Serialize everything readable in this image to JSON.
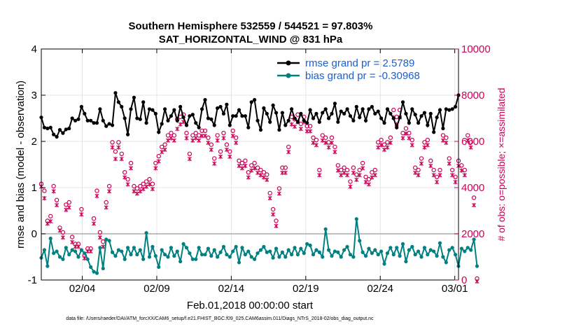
{
  "chart_data": {
    "type": "line",
    "title_line1": "Southern Hemisphere 532559 / 544521 = 97.803%",
    "title_line2": "SAT_HORIZONTAL_WIND @ 831 hPa",
    "xlabel": "Feb.01,2018 00:00:00 start",
    "ylabel_left": "rmse and bias (model - observation)",
    "ylabel_right": "# of obs: o=possible; ×=assimilated",
    "footnote": "data file: /Users/raeder/DAI/ATM_forcXX/CAM6_setup/f.e21.FHIST_BGC.f09_025.CAM6assim.011/Diags_NTrS_2018-02/obs_diag_output.nc",
    "xlim": [
      1,
      29
    ],
    "x_ticks": [
      3.75,
      8.75,
      13.75,
      18.75,
      23.75,
      28.75
    ],
    "x_tick_labels": [
      "02/04",
      "02/09",
      "02/14",
      "02/19",
      "02/24",
      "03/01"
    ],
    "ylim_left": [
      -1,
      4
    ],
    "y_ticks_left": [
      -1,
      0,
      1,
      2,
      3,
      4
    ],
    "ylim_right": [
      0,
      10000
    ],
    "y_ticks_right": [
      0,
      2000,
      4000,
      6000,
      8000,
      10000
    ],
    "series": [
      {
        "name": "rmse",
        "legend": "rmse grand pr = 2.5789",
        "color": "#000000",
        "axis": "left",
        "values": [
          2.52,
          2.3,
          2.28,
          2.3,
          2.15,
          2.1,
          2.25,
          2.18,
          2.26,
          2.28,
          2.5,
          2.45,
          2.48,
          2.75,
          2.6,
          2.45,
          2.45,
          2.4,
          2.4,
          2.7,
          2.45,
          2.33,
          2.38,
          2.35,
          3.05,
          2.85,
          2.75,
          2.5,
          2.15,
          2.7,
          2.95,
          2.5,
          2.48,
          2.85,
          2.4,
          2.7,
          2.68,
          2.6,
          2.2,
          2.38,
          2.7,
          2.45,
          2.55,
          2.68,
          2.45,
          2.75,
          2.52,
          2.35,
          2.55,
          2.58,
          2.4,
          2.3,
          2.7,
          2.9,
          2.5,
          2.48,
          2.35,
          2.72,
          2.75,
          2.6,
          2.8,
          2.35,
          2.55,
          2.55,
          2.68,
          2.55,
          2.55,
          2.3,
          2.85,
          2.9,
          2.45,
          2.25,
          2.72,
          2.6,
          2.42,
          2.78,
          2.62,
          2.25,
          2.62,
          2.35,
          2.45,
          2.7,
          2.5,
          2.42,
          2.6,
          2.45,
          2.4,
          2.68,
          2.5,
          2.6,
          2.42,
          2.62,
          2.7,
          2.5,
          2.6,
          2.82,
          2.42,
          2.65,
          2.6,
          2.7,
          2.55,
          2.45,
          2.75,
          2.52,
          2.7,
          2.45,
          2.7,
          2.75,
          2.6,
          2.65,
          2.5,
          2.4,
          2.7,
          2.6,
          2.5,
          2.3,
          2.52,
          2.85,
          2.6,
          2.4,
          2.7,
          2.58,
          2.4,
          2.55,
          2.62,
          2.35,
          2.6,
          2.2,
          2.52,
          2.68,
          2.28,
          2.7,
          2.68,
          2.7,
          2.75,
          3.0
        ]
      },
      {
        "name": "bias",
        "legend": "bias grand pr = -0.30968",
        "color": "#008080",
        "axis": "left",
        "values": [
          -0.52,
          -0.35,
          -0.7,
          -0.1,
          -0.42,
          -0.38,
          -0.5,
          -0.55,
          -0.3,
          -0.45,
          -0.35,
          -0.38,
          -0.5,
          -0.35,
          -0.42,
          -0.55,
          -0.72,
          -0.82,
          -0.85,
          -0.3,
          -0.75,
          -0.12,
          -0.15,
          -0.4,
          -0.48,
          -0.35,
          -0.38,
          -0.55,
          -0.3,
          -0.45,
          -0.3,
          -0.45,
          -0.35,
          -0.55,
          0.02,
          -0.5,
          -0.28,
          -0.48,
          -0.72,
          -0.35,
          -0.45,
          -0.5,
          -0.3,
          -0.48,
          -0.38,
          -0.6,
          -0.22,
          -0.3,
          -0.42,
          -0.55,
          -0.55,
          -0.3,
          -0.45,
          -0.45,
          -0.32,
          -0.48,
          -0.35,
          -0.5,
          -0.4,
          -0.28,
          -0.45,
          -0.5,
          -0.38,
          -0.28,
          -0.62,
          -0.3,
          -0.45,
          -0.38,
          -0.5,
          -0.55,
          -0.42,
          -0.35,
          -0.28,
          -0.4,
          -0.38,
          -0.52,
          -0.32,
          -0.5,
          -0.4,
          -0.5,
          -0.35,
          -0.45,
          -0.3,
          -0.45,
          -0.32,
          -0.42,
          -0.22,
          -0.25,
          -0.45,
          -0.35,
          -0.4,
          -0.5,
          0.1,
          -0.35,
          -0.48,
          -0.38,
          -0.4,
          -0.5,
          -0.35,
          -0.28,
          -0.45,
          -0.5,
          0.32,
          -0.15,
          -0.4,
          -0.48,
          -0.32,
          -0.42,
          -0.35,
          -0.45,
          -0.38,
          -0.65,
          -0.42,
          -0.3,
          -0.45,
          -0.3,
          -0.48,
          -0.22,
          -0.6,
          -0.35,
          -0.28,
          -0.45,
          -0.38,
          -0.5,
          -0.3,
          -0.45,
          -0.35,
          -0.38,
          -0.48,
          -0.2,
          -0.5,
          -0.62,
          -0.35,
          -0.3,
          -0.45,
          -0.7,
          -0.32,
          -0.38,
          -0.3,
          -0.35,
          -0.12,
          -0.7
        ]
      },
      {
        "name": "possible",
        "marker": "o",
        "color": "#cc0055",
        "axis": "right",
        "values": [
          4100,
          3800,
          2500,
          2700,
          4000,
          3400,
          2200,
          2000,
          3200,
          3300,
          1800,
          1500,
          1500,
          3000,
          1000,
          1300,
          1300,
          2600,
          3800,
          2000,
          1600,
          3300,
          4000,
          5900,
          5500,
          5900,
          5400,
          4600,
          4300,
          5000,
          4000,
          3900,
          4000,
          4100,
          4200,
          4300,
          4100,
          5000,
          5300,
          5700,
          5800,
          6200,
          6300,
          6200,
          6900,
          7000,
          7100,
          6300,
          5400,
          6200,
          6300,
          6200,
          6400,
          6400,
          6100,
          5800,
          5200,
          6200,
          5500,
          6300,
          5800,
          5500,
          6400,
          6100,
          5100,
          5000,
          5100,
          4600,
          4900,
          5000,
          4800,
          4700,
          4600,
          4500,
          3700,
          3000,
          2500,
          3900,
          4800,
          4800,
          5700,
          7000,
          6900,
          7100,
          6700,
          7000,
          6600,
          6600,
          6100,
          6000,
          4700,
          6200,
          6100,
          5900,
          6100,
          5700,
          4900,
          4700,
          4800,
          4700,
          4200,
          4800,
          4500,
          4700,
          5000,
          4400,
          4300,
          4600,
          4700,
          5900,
          6000,
          5800,
          5900,
          6100,
          7300,
          7000,
          7300,
          6300,
          6500,
          6300,
          6000,
          4800,
          4700,
          5200,
          5900,
          6000,
          5100,
          4700,
          4400,
          4700,
          6200,
          6100,
          5200,
          4700,
          4400,
          5100,
          4900,
          4700,
          6200,
          5900,
          3500,
          0
        ]
      },
      {
        "name": "assimilated",
        "marker": "x",
        "color": "#cc0055",
        "axis": "right",
        "values": [
          4100,
          3600,
          2500,
          2600,
          3900,
          3300,
          2200,
          1900,
          3100,
          3200,
          1700,
          1500,
          1500,
          2900,
          1000,
          1300,
          1300,
          2500,
          3700,
          1900,
          1500,
          3200,
          3900,
          5800,
          5300,
          5800,
          5300,
          4500,
          4200,
          4900,
          3900,
          3800,
          3900,
          4000,
          4100,
          4200,
          4000,
          4900,
          5200,
          5600,
          5700,
          6100,
          6200,
          6100,
          6600,
          6800,
          6900,
          6200,
          5300,
          6100,
          6200,
          6100,
          6300,
          6300,
          6000,
          5700,
          5100,
          6100,
          5400,
          6200,
          5700,
          5400,
          6300,
          6000,
          5000,
          4900,
          5000,
          4500,
          4800,
          4900,
          4700,
          4600,
          4500,
          4400,
          3600,
          2900,
          2400,
          3800,
          4700,
          4700,
          5600,
          6800,
          6700,
          6900,
          6600,
          6900,
          6500,
          6500,
          6000,
          5900,
          4600,
          6100,
          6000,
          5800,
          6000,
          5600,
          4800,
          4600,
          4700,
          4600,
          4100,
          4700,
          4400,
          4600,
          4900,
          4300,
          4200,
          4500,
          4600,
          5800,
          5900,
          5700,
          5800,
          6000,
          7100,
          6800,
          7100,
          6200,
          6400,
          6200,
          5900,
          4700,
          4600,
          5100,
          5800,
          5900,
          5000,
          4600,
          4300,
          4600,
          6100,
          6000,
          5100,
          4600,
          4300,
          5000,
          4800,
          4600,
          6100,
          5800,
          3300,
          0
        ]
      }
    ]
  }
}
